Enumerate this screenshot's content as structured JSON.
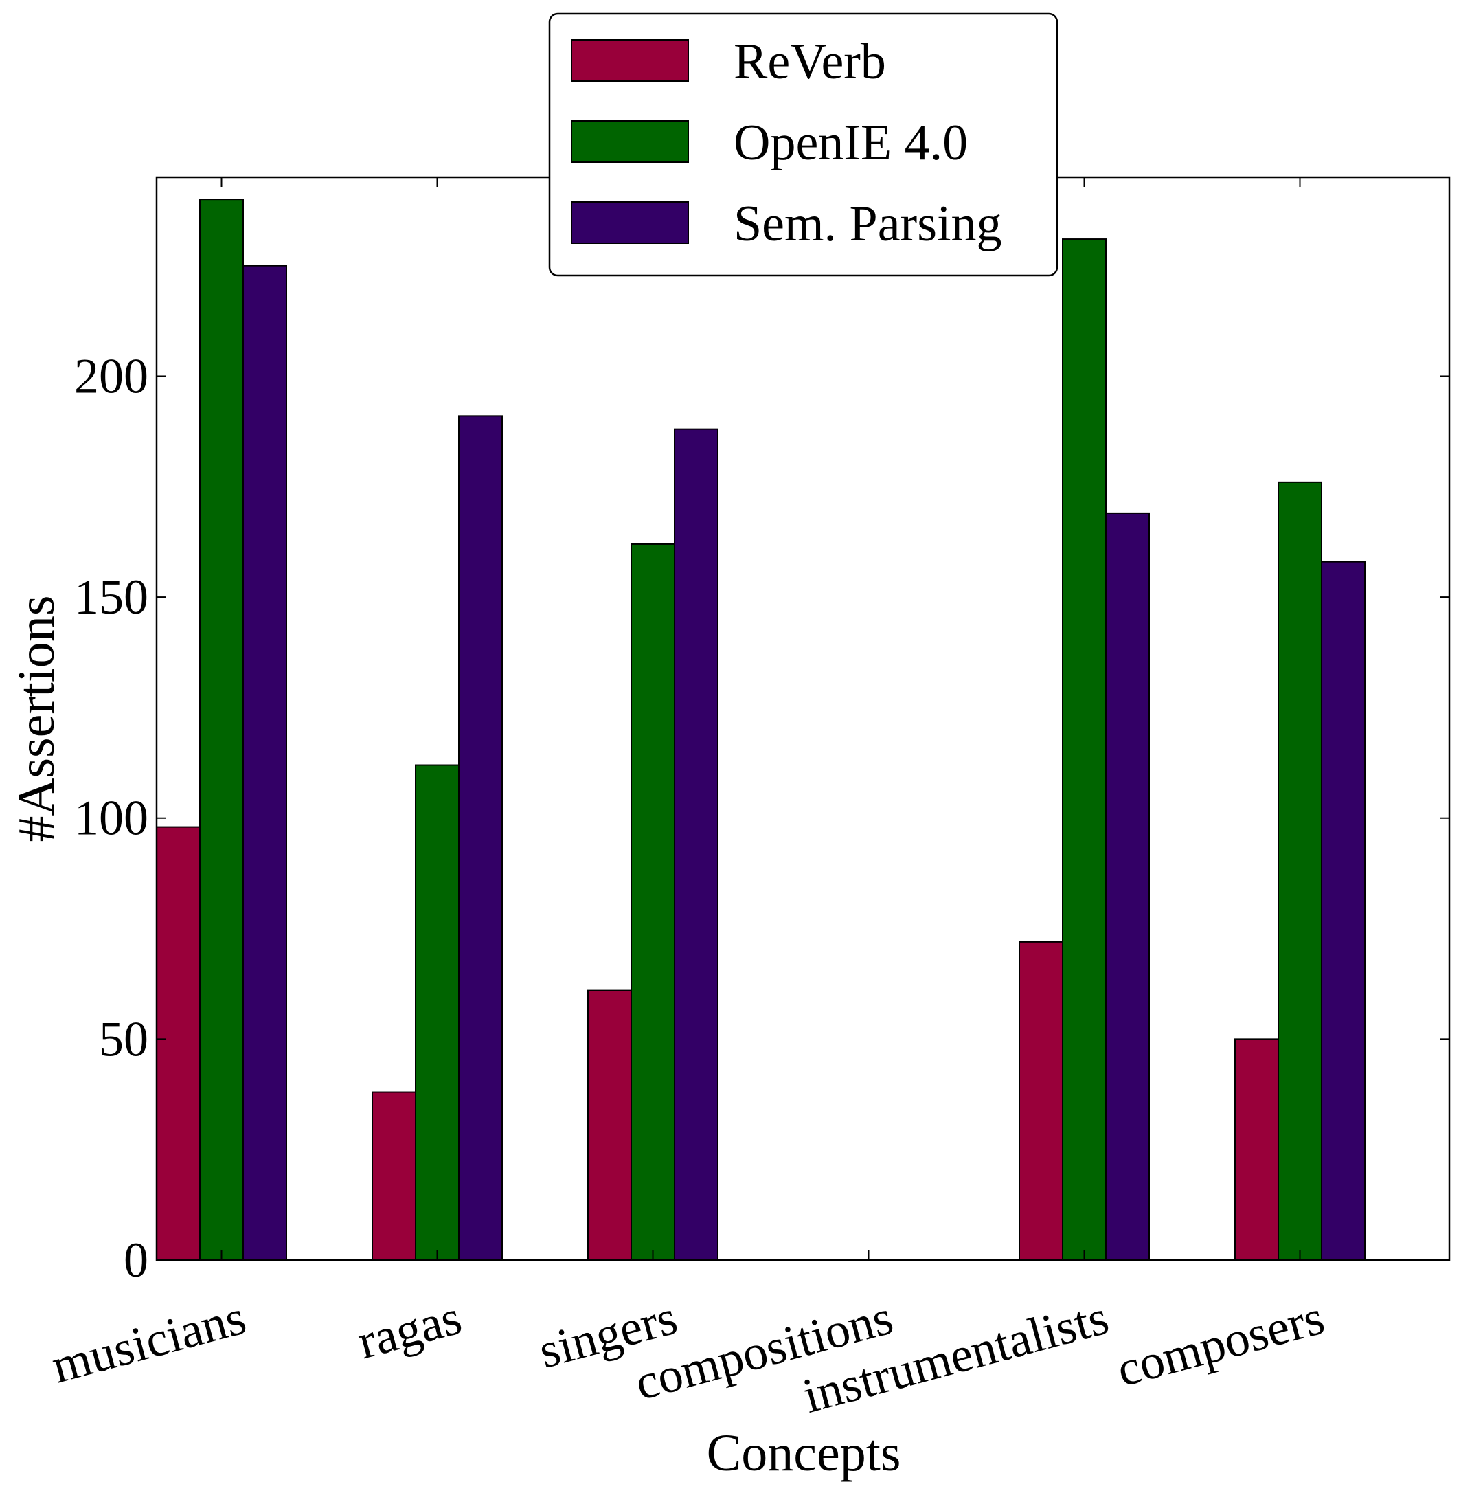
{
  "chart_data": {
    "type": "bar",
    "xlabel": "Concepts",
    "ylabel": "#Assertions",
    "categories": [
      "musicians",
      "ragas",
      "singers",
      "compositions",
      "instrumentalists",
      "composers"
    ],
    "series": [
      {
        "name": "ReVerb",
        "color": "#99003a",
        "values": [
          98,
          38,
          61,
          0,
          72,
          50
        ]
      },
      {
        "name": "OpenIE 4.0",
        "color": "#006400",
        "values": [
          240,
          112,
          162,
          0,
          231,
          176
        ]
      },
      {
        "name": "Sem. Parsing",
        "color": "#330066",
        "values": [
          225,
          191,
          188,
          0,
          169,
          158
        ]
      }
    ],
    "ylim": [
      0,
      245
    ],
    "yticks": [
      0,
      50,
      100,
      150,
      200
    ],
    "grid": false,
    "legend": {
      "position": "top-center"
    }
  }
}
